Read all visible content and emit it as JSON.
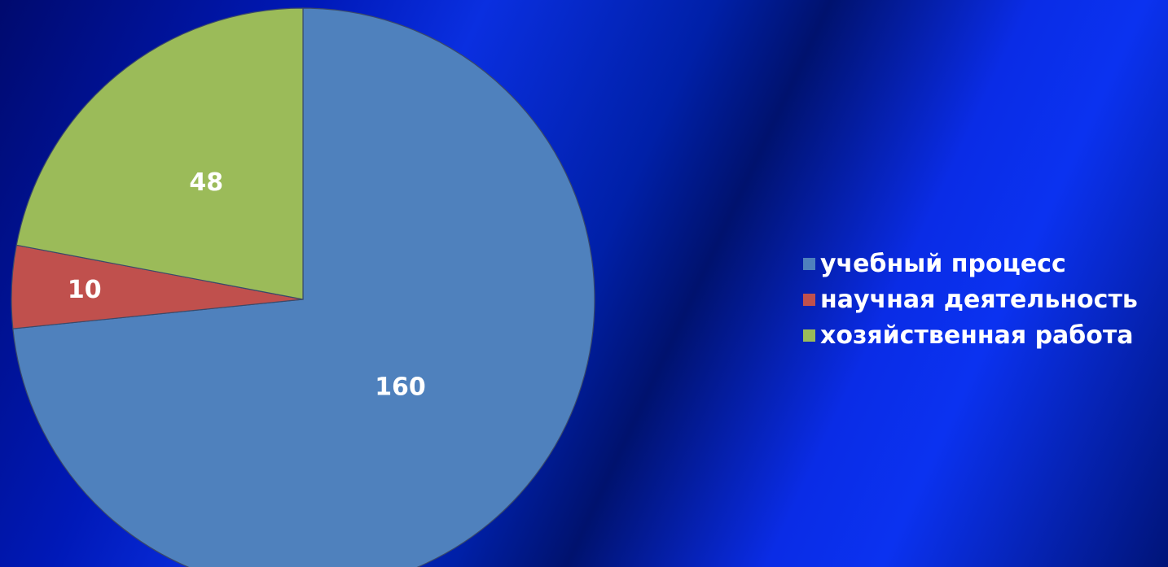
{
  "chart_data": {
    "type": "pie",
    "categories": [
      "учебный процесс",
      "научная деятельность",
      "хозяйственная работа"
    ],
    "values": [
      160,
      10,
      48
    ],
    "colors": [
      "#4f81bd",
      "#c0504d",
      "#9bbb59"
    ],
    "data_labels": [
      "160",
      "10",
      "48"
    ],
    "legend_position": "right",
    "title": ""
  }
}
